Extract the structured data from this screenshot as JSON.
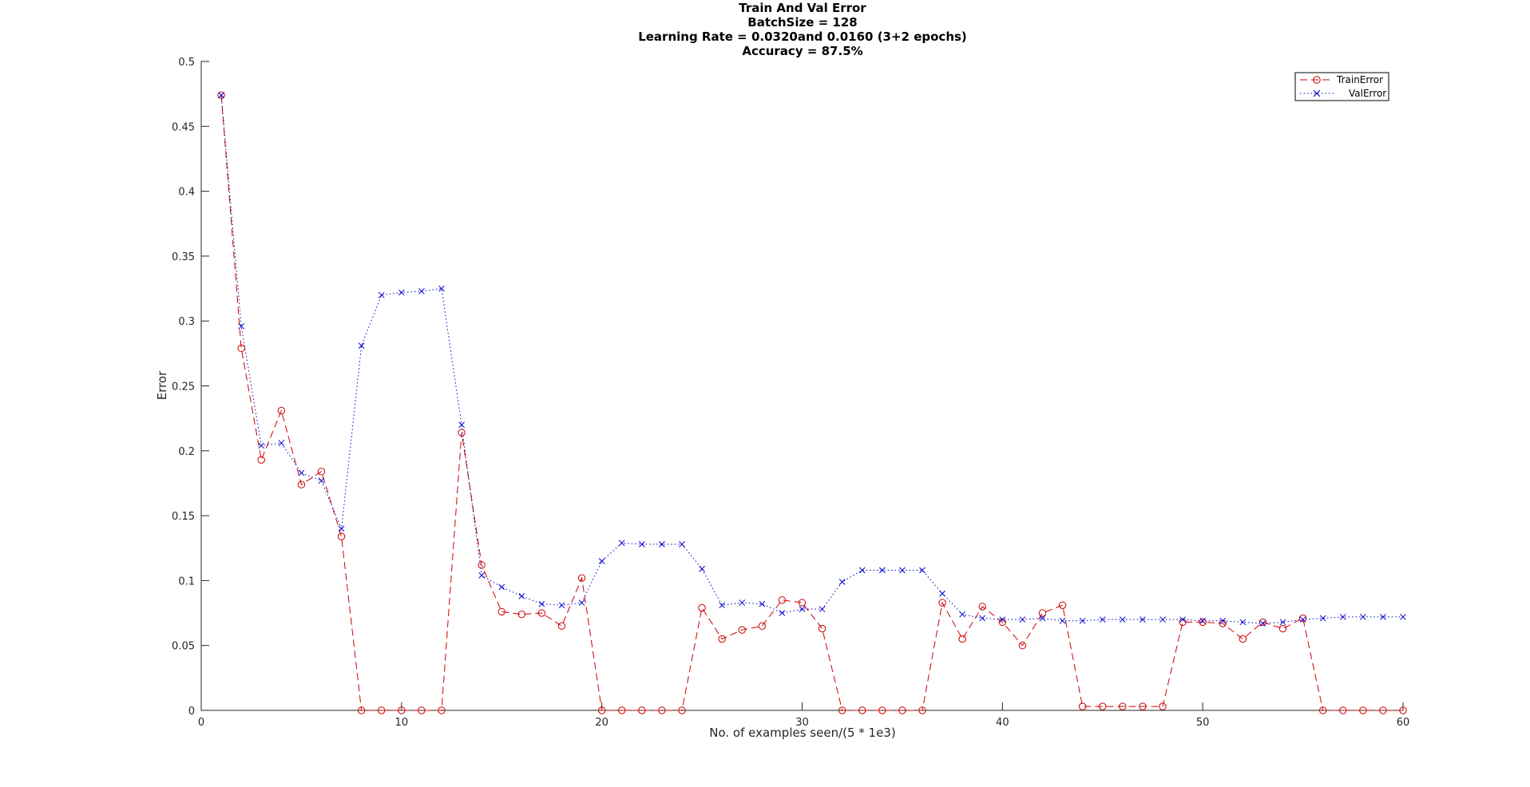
{
  "chart_data": {
    "type": "line",
    "title_lines": [
      "Train And Val Error",
      "BatchSize = 128",
      "Learning Rate = 0.0320and 0.0160 (3+2 epochs)",
      "Accuracy = 87.5%"
    ],
    "xlabel": "No. of examples seen/(5 * 1e3)",
    "ylabel": "Error",
    "xlim": [
      0,
      60
    ],
    "ylim": [
      0,
      0.5
    ],
    "x_ticks": [
      0,
      10,
      20,
      30,
      40,
      50,
      60
    ],
    "x_tick_labels": [
      "0",
      "10",
      "20",
      "30",
      "40",
      "50",
      "60"
    ],
    "y_ticks": [
      0,
      0.05,
      0.1,
      0.15,
      0.2,
      0.25,
      0.3,
      0.35,
      0.4,
      0.45,
      0.5
    ],
    "y_tick_labels": [
      "0",
      "0.05",
      "0.1",
      "0.15",
      "0.2",
      "0.25",
      "0.3",
      "0.35",
      "0.4",
      "0.45",
      "0.5"
    ],
    "grid": false,
    "legend_position": "top-right",
    "x": [
      1,
      2,
      3,
      4,
      5,
      6,
      7,
      8,
      9,
      10,
      11,
      12,
      13,
      14,
      15,
      16,
      17,
      18,
      19,
      20,
      21,
      22,
      23,
      24,
      25,
      26,
      27,
      28,
      29,
      30,
      31,
      32,
      33,
      34,
      35,
      36,
      37,
      38,
      39,
      40,
      41,
      42,
      43,
      44,
      45,
      46,
      47,
      48,
      49,
      50,
      51,
      52,
      53,
      54,
      55,
      56,
      57,
      58,
      59,
      60
    ],
    "series": [
      {
        "name": "TrainError",
        "color": "#cc0000",
        "line_style": "dashed",
        "marker": "circle",
        "values": [
          0.474,
          0.279,
          0.193,
          0.231,
          0.174,
          0.184,
          0.134,
          0.0,
          0.0,
          0.0,
          0.0,
          0.0,
          0.214,
          0.112,
          0.076,
          0.074,
          0.075,
          0.065,
          0.102,
          0.0,
          0.0,
          0.0,
          0.0,
          0.0,
          0.079,
          0.055,
          0.062,
          0.065,
          0.085,
          0.083,
          0.063,
          0.0,
          0.0,
          0.0,
          0.0,
          0.0,
          0.083,
          0.055,
          0.08,
          0.068,
          0.05,
          0.075,
          0.081,
          0.003,
          0.003,
          0.003,
          0.003,
          0.003,
          0.068,
          0.068,
          0.067,
          0.055,
          0.068,
          0.063,
          0.071,
          0.0,
          0.0,
          0.0,
          0.0,
          0.0
        ]
      },
      {
        "name": "ValError",
        "color": "#0000cc",
        "line_style": "dotted",
        "marker": "x",
        "values": [
          0.474,
          0.296,
          0.204,
          0.206,
          0.183,
          0.177,
          0.14,
          0.281,
          0.32,
          0.322,
          0.323,
          0.325,
          0.22,
          0.104,
          0.095,
          0.088,
          0.082,
          0.081,
          0.083,
          0.115,
          0.129,
          0.128,
          0.128,
          0.128,
          0.109,
          0.081,
          0.083,
          0.082,
          0.075,
          0.078,
          0.078,
          0.099,
          0.108,
          0.108,
          0.108,
          0.108,
          0.09,
          0.074,
          0.071,
          0.07,
          0.07,
          0.071,
          0.069,
          0.069,
          0.07,
          0.07,
          0.07,
          0.07,
          0.07,
          0.069,
          0.069,
          0.068,
          0.067,
          0.068,
          0.07,
          0.071,
          0.072,
          0.072,
          0.072,
          0.072
        ]
      }
    ]
  }
}
